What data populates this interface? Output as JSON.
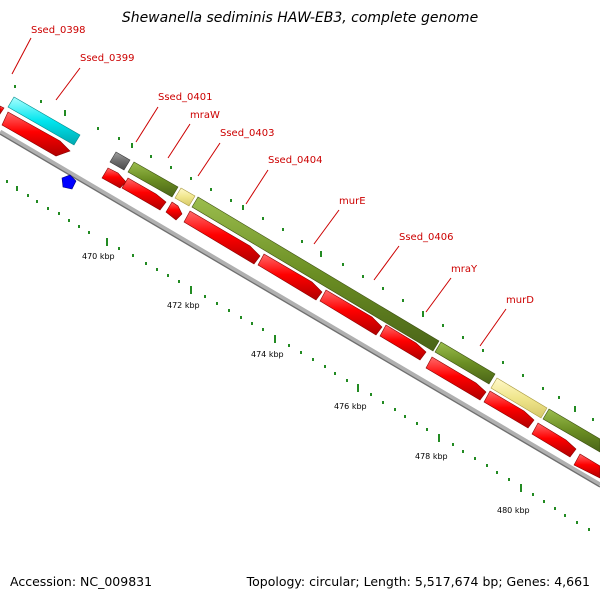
{
  "title": "Shewanella sediminis HAW-EB3, complete genome",
  "footer": {
    "accession": "Accession: NC_009831",
    "summary": "Topology: circular; Length: 5,517,674 bp; Genes: 4,661"
  },
  "colors": {
    "backbone": "#9a9a9a",
    "cds_forward": "#ff0000",
    "cds_reverse": "#6b8e23",
    "label": "#cc0000",
    "tick": "#228b22",
    "highlight_cyan": "#00e5ee",
    "highlight_khaki": "#f0e68c",
    "highlight_gray": "#6e6e6e",
    "highlight_blue": "#0000ff"
  },
  "gene_labels": [
    {
      "name": "Ssed_0398"
    },
    {
      "name": "Ssed_0399"
    },
    {
      "name": "Ssed_0401"
    },
    {
      "name": "mraW"
    },
    {
      "name": "Ssed_0403"
    },
    {
      "name": "Ssed_0404"
    },
    {
      "name": "murE"
    },
    {
      "name": "Ssed_0406"
    },
    {
      "name": "mraY"
    },
    {
      "name": "murD"
    }
  ],
  "kbp_labels": [
    "470 kbp",
    "472 kbp",
    "474 kbp",
    "476 kbp",
    "478 kbp",
    "480 kbp"
  ]
}
